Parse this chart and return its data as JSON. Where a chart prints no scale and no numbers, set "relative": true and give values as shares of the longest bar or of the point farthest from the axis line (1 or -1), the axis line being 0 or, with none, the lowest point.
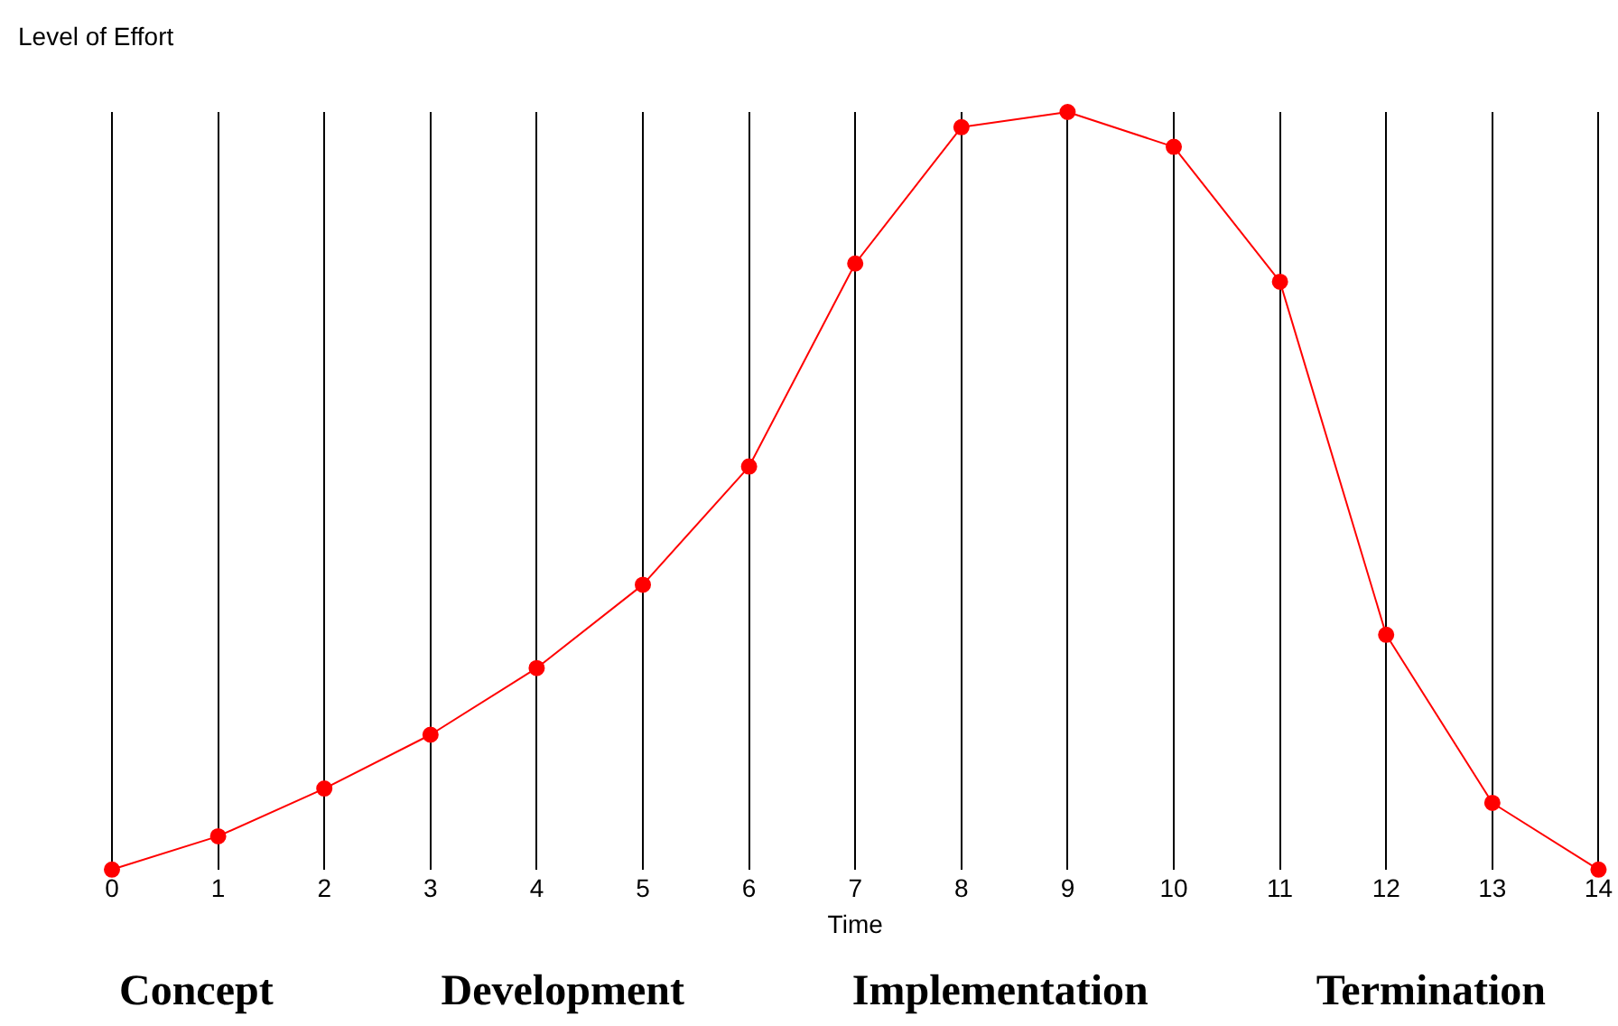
{
  "chart_data": {
    "type": "line",
    "ylabel": "Level of Effort",
    "xlabel": "Time",
    "relative": true,
    "x": [
      0,
      1,
      2,
      3,
      4,
      5,
      6,
      7,
      8,
      9,
      10,
      11,
      12,
      13,
      14
    ],
    "xlim": [
      0,
      14
    ],
    "xticks": [
      0,
      1,
      2,
      3,
      4,
      5,
      6,
      7,
      8,
      9,
      10,
      11,
      12,
      13,
      14
    ],
    "series": [
      {
        "color": "#ff0000",
        "values": [
          0,
          0.044,
          0.107,
          0.178,
          0.266,
          0.376,
          0.532,
          0.8,
          0.98,
          1,
          0.954,
          0.776,
          0.31,
          0.088,
          0
        ]
      }
    ],
    "grid": "x",
    "marker": "circle",
    "line_style": "solid",
    "annotations": [
      "Concept",
      "Development",
      "Implementation",
      "Termination"
    ]
  }
}
